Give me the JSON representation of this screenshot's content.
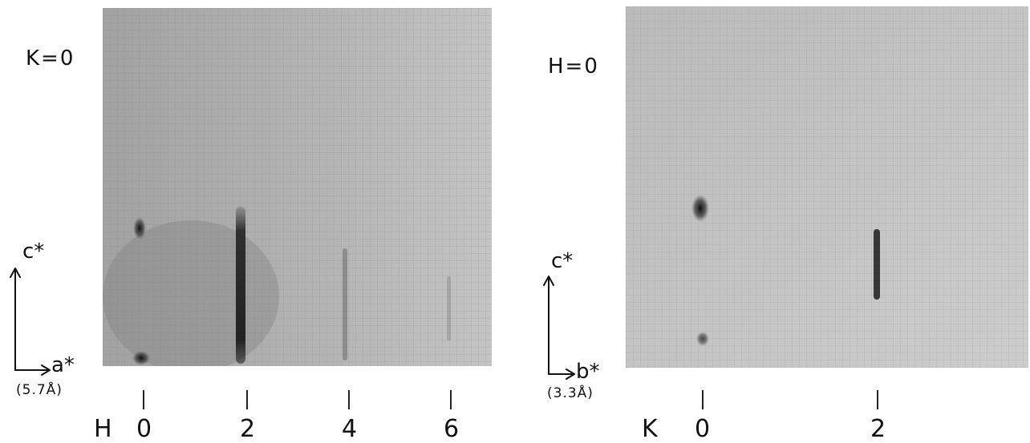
{
  "left_panel": {
    "condition": "K=0",
    "vertical_axis": "c*",
    "horizontal_axis": "a*",
    "spacing": "(5.7Å)",
    "index_symbol": "H",
    "indices": [
      "0",
      "2",
      "4",
      "6"
    ]
  },
  "right_panel": {
    "condition": "H=0",
    "vertical_axis": "c*",
    "horizontal_axis": "b*",
    "spacing": "(3.3Å)",
    "index_symbol": "K",
    "indices": [
      "0",
      "2"
    ]
  },
  "colors": {
    "background": "#ffffff",
    "film_gray": "#a9a9a9",
    "streak": "#1c1c1c",
    "ink": "#111111"
  }
}
